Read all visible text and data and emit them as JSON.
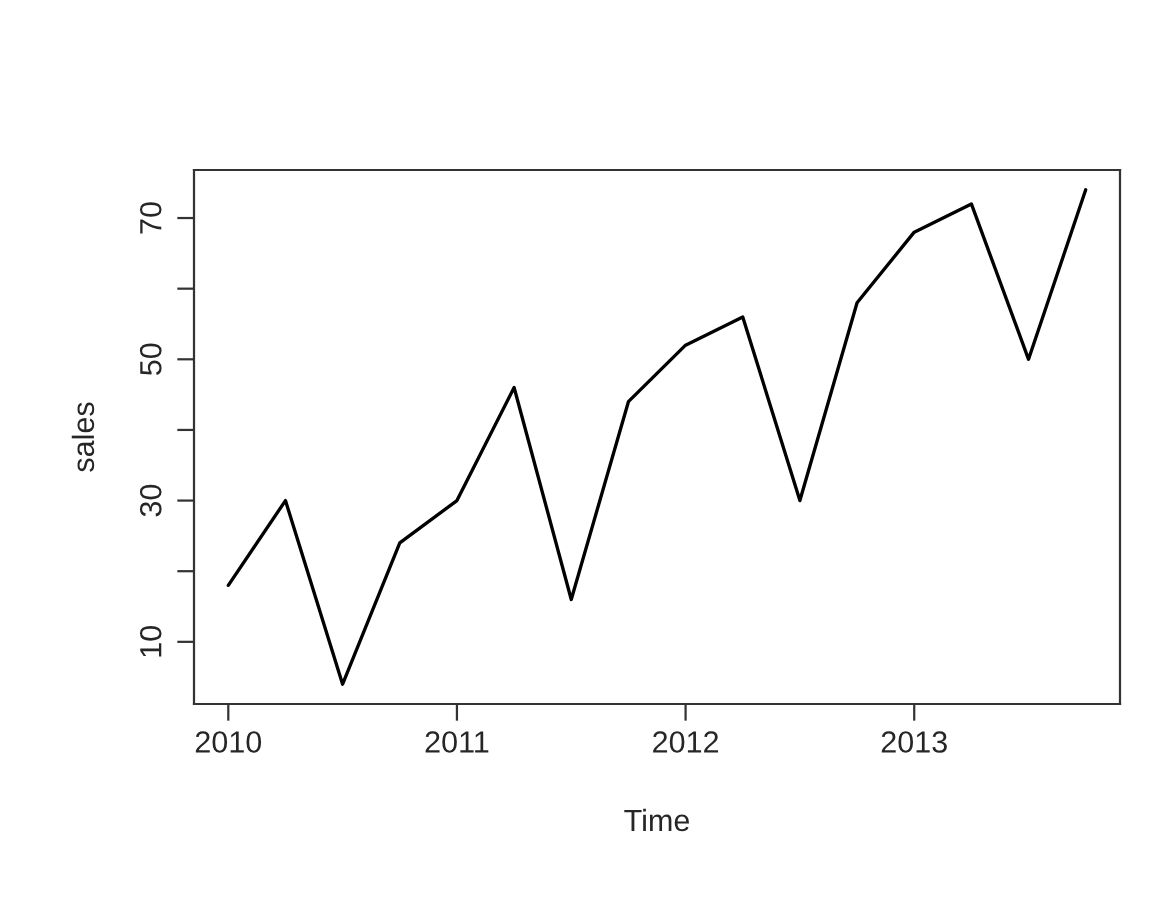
{
  "chart_data": {
    "type": "line",
    "xlabel": "Time",
    "ylabel": "sales",
    "x": [
      2010,
      2010.25,
      2010.5,
      2010.75,
      2011,
      2011.25,
      2011.5,
      2011.75,
      2012,
      2012.25,
      2012.5,
      2012.75,
      2013,
      2013.25,
      2013.5,
      2013.75
    ],
    "series": [
      {
        "color": "#000000",
        "values": [
          18,
          30,
          4,
          24,
          30,
          46,
          16,
          44,
          52,
          56,
          30,
          58,
          68,
          72,
          50,
          74
        ]
      }
    ],
    "xlim": [
      2009.85,
      2013.9
    ],
    "xticks": [
      2010,
      2011,
      2012,
      2013
    ],
    "ylim": [
      1.2,
      76.8
    ],
    "yticks": [
      10,
      {
        "value": 20,
        "label": null
      },
      30,
      {
        "value": 40,
        "label": null
      },
      50,
      {
        "value": 60,
        "label": null
      },
      70
    ],
    "grid": false,
    "marker": "none",
    "line_style": "solid"
  }
}
